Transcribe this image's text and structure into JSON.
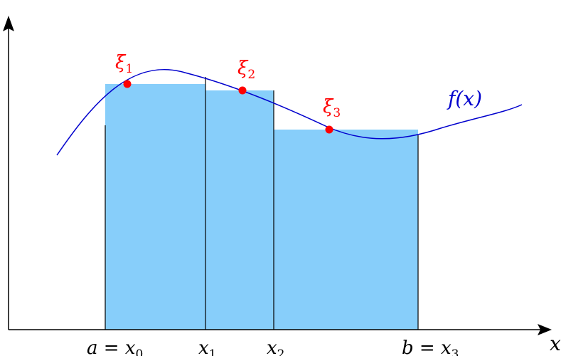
{
  "diagram": {
    "colors": {
      "rect_fill": "#87cefa",
      "curve": "#0000cd",
      "points": "#ff0000",
      "axes": "#000000"
    },
    "axis_labels": {
      "x_axis": "x"
    },
    "ticks": {
      "x0": {
        "lhs": "a = ",
        "var": "x",
        "sub": "0"
      },
      "x1": {
        "var": "x",
        "sub": "1"
      },
      "x2": {
        "var": "x",
        "sub": "2"
      },
      "x3": {
        "lhs": "b = ",
        "var": "x",
        "sub": "3"
      }
    },
    "function_label": "f(x)",
    "sample_points": [
      {
        "var": "ξ",
        "sub": "1"
      },
      {
        "var": "ξ",
        "sub": "2"
      },
      {
        "var": "ξ",
        "sub": "3"
      }
    ]
  }
}
